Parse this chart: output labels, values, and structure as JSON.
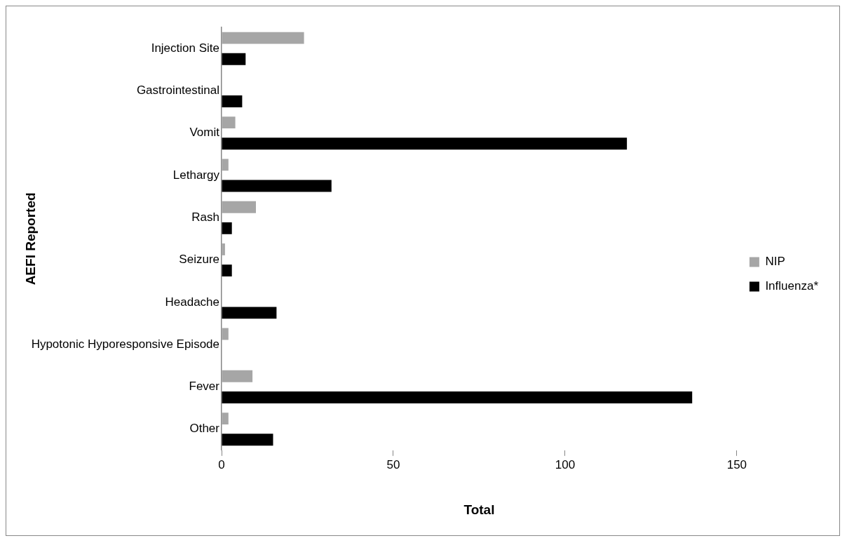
{
  "chart_data": {
    "type": "bar",
    "orientation": "horizontal",
    "xlabel": "Total",
    "ylabel": "AEFI Reported",
    "categories": [
      "Injection Site",
      "Gastrointestinal",
      "Vomit",
      "Lethargy",
      "Rash",
      "Seizure",
      "Headache",
      "Hypotonic Hyporesponsive Episode",
      "Fever",
      "Other"
    ],
    "series": [
      {
        "name": "NIP",
        "color": "#a6a6a6",
        "values": [
          24,
          0,
          4,
          2,
          10,
          1,
          0,
          2,
          9,
          2
        ]
      },
      {
        "name": "Influenza*",
        "color": "#000000",
        "values": [
          7,
          6,
          118,
          32,
          3,
          3,
          16,
          0,
          137,
          15
        ]
      }
    ],
    "xlim": [
      0,
      150
    ],
    "xticks": [
      0,
      50,
      100,
      150
    ],
    "grid": false,
    "legend": "right"
  }
}
